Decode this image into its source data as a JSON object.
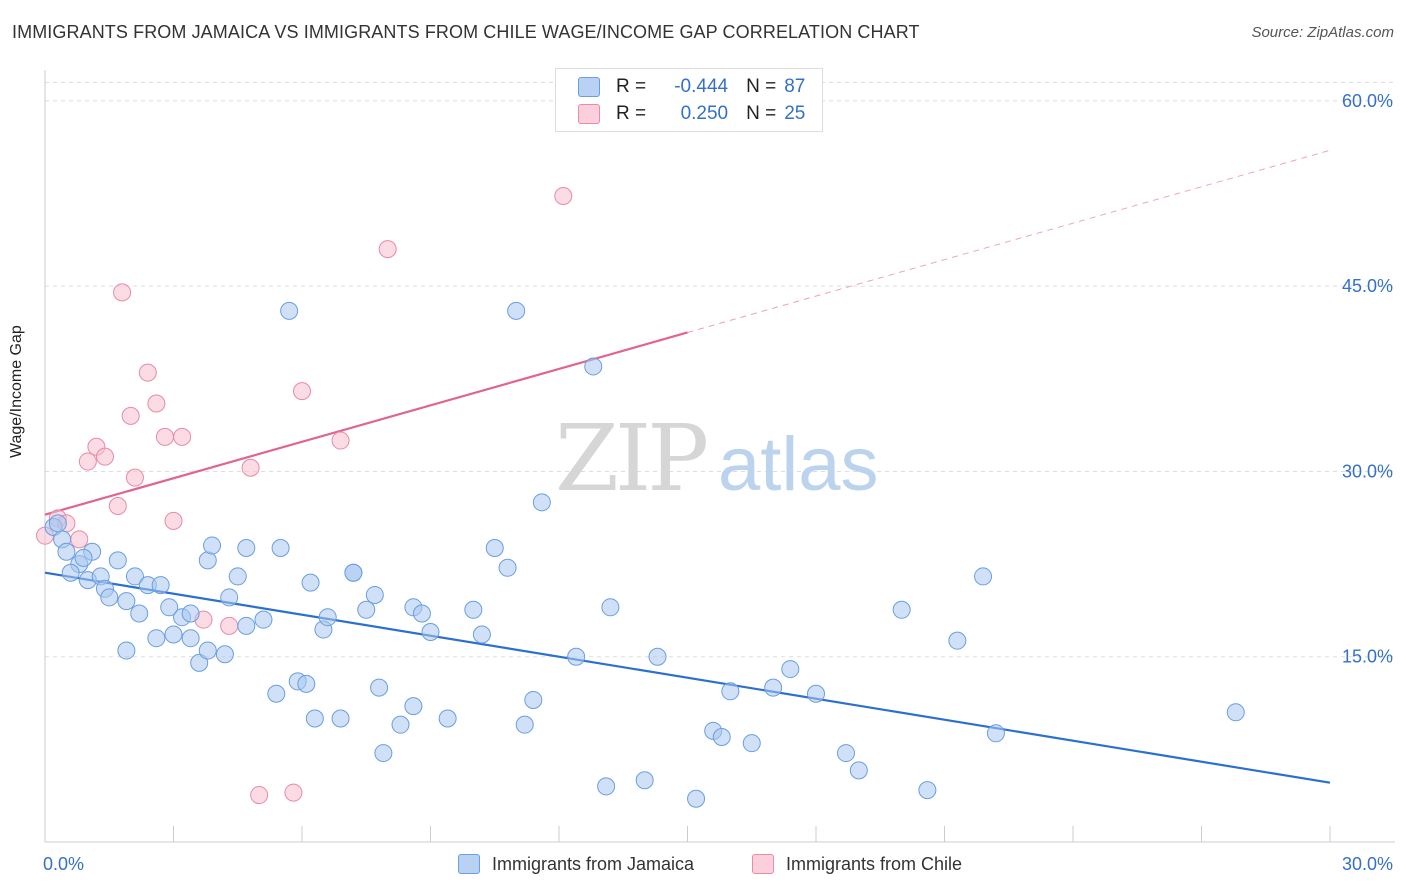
{
  "title": "IMMIGRANTS FROM JAMAICA VS IMMIGRANTS FROM CHILE WAGE/INCOME GAP CORRELATION CHART",
  "source": "Source: ZipAtlas.com",
  "watermark": {
    "zip": "ZIP",
    "atlas": "atlas"
  },
  "colors": {
    "jamaica_fill": "#aac8f0",
    "jamaica_stroke": "#6a9ee0",
    "jamaica_line": "#2b6fd1",
    "chile_fill": "#f8bfd0",
    "chile_stroke": "#e88aa8",
    "chile_line": "#e0648c",
    "axis_text": "#3470c8",
    "grid": "#dddddd"
  },
  "legend": {
    "r_label": "R =",
    "n_label": "N =",
    "jamaica": {
      "r": "-0.444",
      "n": "87"
    },
    "chile": {
      "r": "0.250",
      "n": "25"
    }
  },
  "bottom_legend": {
    "jamaica": "Immigrants from Jamaica",
    "chile": "Immigrants from Chile"
  },
  "chart_data": {
    "type": "scatter",
    "xlabel": "",
    "ylabel": "Wage/Income Gap",
    "xlim": [
      0,
      30
    ],
    "ylim": [
      0,
      62.5
    ],
    "x_tick_labels": [
      "0.0%",
      "30.0%"
    ],
    "y_ticks": [
      15,
      30,
      45,
      60
    ],
    "y_tick_labels": [
      "15.0%",
      "30.0%",
      "45.0%",
      "60.0%"
    ],
    "series": [
      {
        "name": "Immigrants from Jamaica",
        "trend": {
          "x0": 0,
          "y0": 21.8,
          "x1": 30,
          "y1": 4.8,
          "dashed_from": null
        },
        "points": [
          [
            0.2,
            25.5
          ],
          [
            0.4,
            24.5
          ],
          [
            0.5,
            23.5
          ],
          [
            0.8,
            22.5
          ],
          [
            0.6,
            21.8
          ],
          [
            1.1,
            23.5
          ],
          [
            1.0,
            21.2
          ],
          [
            1.3,
            21.5
          ],
          [
            1.4,
            20.5
          ],
          [
            1.5,
            19.8
          ],
          [
            1.7,
            22.8
          ],
          [
            1.9,
            19.5
          ],
          [
            2.1,
            21.5
          ],
          [
            2.4,
            20.8
          ],
          [
            2.7,
            20.8
          ],
          [
            2.2,
            18.5
          ],
          [
            2.6,
            16.5
          ],
          [
            3.0,
            16.8
          ],
          [
            3.2,
            18.2
          ],
          [
            3.4,
            18.5
          ],
          [
            1.9,
            15.5
          ],
          [
            3.4,
            16.5
          ],
          [
            3.6,
            14.5
          ],
          [
            3.8,
            15.5
          ],
          [
            4.2,
            15.2
          ],
          [
            3.8,
            22.8
          ],
          [
            3.9,
            24.0
          ],
          [
            4.3,
            19.8
          ],
          [
            4.5,
            21.5
          ],
          [
            4.7,
            17.5
          ],
          [
            4.7,
            23.8
          ],
          [
            5.1,
            18.0
          ],
          [
            5.5,
            23.8
          ],
          [
            5.4,
            12.0
          ],
          [
            5.9,
            13.0
          ],
          [
            5.7,
            43.0
          ],
          [
            6.1,
            12.8
          ],
          [
            6.3,
            10.0
          ],
          [
            6.5,
            17.2
          ],
          [
            6.6,
            18.2
          ],
          [
            6.9,
            10.0
          ],
          [
            7.2,
            21.8
          ],
          [
            7.2,
            21.8
          ],
          [
            7.5,
            18.8
          ],
          [
            7.7,
            20.0
          ],
          [
            7.8,
            12.5
          ],
          [
            7.9,
            7.2
          ],
          [
            8.3,
            9.5
          ],
          [
            8.6,
            11.0
          ],
          [
            8.6,
            19.0
          ],
          [
            8.8,
            18.5
          ],
          [
            9.0,
            17.0
          ],
          [
            9.4,
            10.0
          ],
          [
            10.0,
            18.8
          ],
          [
            10.2,
            16.8
          ],
          [
            10.5,
            23.8
          ],
          [
            10.8,
            22.2
          ],
          [
            11.0,
            43.0
          ],
          [
            11.2,
            9.5
          ],
          [
            11.4,
            11.5
          ],
          [
            11.6,
            27.5
          ],
          [
            12.4,
            15.0
          ],
          [
            12.8,
            38.5
          ],
          [
            13.1,
            4.5
          ],
          [
            13.2,
            19.0
          ],
          [
            14.0,
            5.0
          ],
          [
            14.3,
            15.0
          ],
          [
            15.2,
            3.5
          ],
          [
            15.6,
            9.0
          ],
          [
            15.8,
            8.5
          ],
          [
            16.0,
            12.2
          ],
          [
            16.5,
            8.0
          ],
          [
            17.0,
            12.5
          ],
          [
            17.4,
            14.0
          ],
          [
            18.0,
            12.0
          ],
          [
            18.7,
            7.2
          ],
          [
            19.0,
            5.8
          ],
          [
            20.0,
            18.8
          ],
          [
            20.6,
            4.2
          ],
          [
            21.3,
            16.3
          ],
          [
            21.9,
            21.5
          ],
          [
            22.2,
            8.8
          ],
          [
            27.8,
            10.5
          ],
          [
            0.3,
            25.8
          ],
          [
            0.9,
            23.0
          ],
          [
            2.9,
            19.0
          ],
          [
            6.2,
            21.0
          ]
        ]
      },
      {
        "name": "Immigrants from Chile",
        "trend": {
          "x0": 0,
          "y0": 26.5,
          "x1": 30,
          "y1": 56.0,
          "solid_until_x": 15
        },
        "points": [
          [
            0.0,
            24.8
          ],
          [
            0.3,
            26.2
          ],
          [
            0.5,
            25.8
          ],
          [
            0.8,
            24.5
          ],
          [
            1.0,
            30.8
          ],
          [
            1.2,
            32.0
          ],
          [
            1.4,
            31.2
          ],
          [
            1.7,
            27.2
          ],
          [
            1.8,
            44.5
          ],
          [
            2.0,
            34.5
          ],
          [
            2.1,
            29.5
          ],
          [
            2.4,
            38.0
          ],
          [
            2.6,
            35.5
          ],
          [
            2.8,
            32.8
          ],
          [
            3.0,
            26.0
          ],
          [
            3.2,
            32.8
          ],
          [
            3.7,
            18.0
          ],
          [
            4.3,
            17.5
          ],
          [
            4.8,
            30.3
          ],
          [
            5.0,
            3.8
          ],
          [
            5.8,
            4.0
          ],
          [
            6.0,
            36.5
          ],
          [
            6.9,
            32.5
          ],
          [
            8.0,
            48.0
          ],
          [
            12.1,
            52.3
          ]
        ]
      }
    ]
  }
}
